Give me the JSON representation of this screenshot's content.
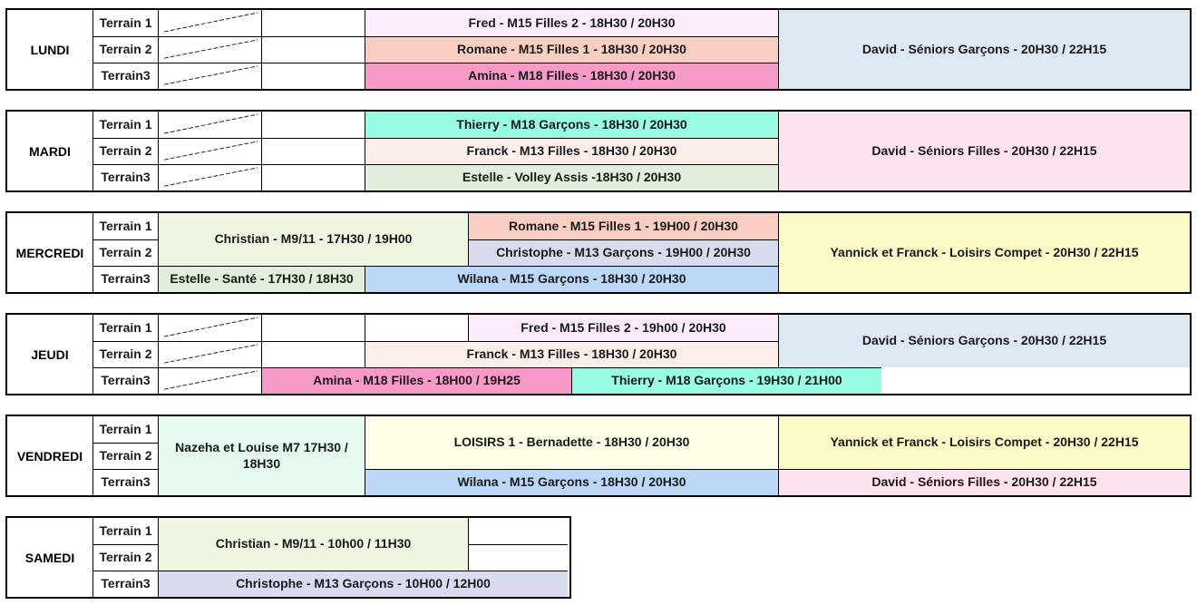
{
  "colors": {
    "pink_light": "#fcecfb",
    "salmon": "#f8cdc2",
    "magenta": "#f79ac9",
    "blue_light": "#dde8f4",
    "cyan": "#98fbe4",
    "peach_light": "#fdeee9",
    "green_light": "#e2eedd",
    "pink_pale": "#fce2ee",
    "green_pale": "#eef6e2",
    "lavender": "#d9dcee",
    "blue": "#bdd8f7",
    "yellow_light": "#fbf9c8",
    "mint": "#e6f9ee",
    "cream": "#fdfce6",
    "white": "#ffffff"
  },
  "days": [
    {
      "name": "LUNDI",
      "terrains": [
        "Terrain 1",
        "Terrain 2",
        "Terrain3"
      ],
      "blocks": [
        {
          "text": "Fred - M15 Filles 2 - 18H30 / 20H30",
          "color": "pink_light"
        },
        {
          "text": "Romane - M15 Filles 1 - 18H30 / 20H30",
          "color": "salmon"
        },
        {
          "text": "Amina - M18 Filles - 18H30 / 20H30",
          "color": "magenta"
        },
        {
          "text": "David -  Séniors Garçons - 20H30 / 22H15",
          "color": "blue_light"
        }
      ]
    },
    {
      "name": "MARDI",
      "terrains": [
        "Terrain 1",
        "Terrain 2",
        "Terrain3"
      ],
      "blocks": [
        {
          "text": "Thierry - M18 Garçons - 18H30 / 20H30",
          "color": "cyan"
        },
        {
          "text": "Franck - M13 Filles - 18H30 / 20H30",
          "color": "peach_light"
        },
        {
          "text": "Estelle - Volley Assis -18H30 / 20H30",
          "color": "green_light"
        },
        {
          "text": "David -  Séniors Filles - 20H30 / 22H15",
          "color": "pink_pale"
        }
      ]
    },
    {
      "name": "MERCREDI",
      "terrains": [
        "Terrain 1",
        "Terrain 2",
        "Terrain3"
      ],
      "blocks": [
        {
          "text": "Christian - M9/11 - 17H30 / 19H00",
          "color": "green_pale"
        },
        {
          "text": "Romane - M15 Filles 1 - 19H00 / 20H30",
          "color": "salmon"
        },
        {
          "text": "Christophe - M13 Garçons - 19H00 / 20H30",
          "color": "lavender"
        },
        {
          "text": "Estelle - Santé - 17H30 / 18H30",
          "color": "green_light"
        },
        {
          "text": "Wilana - M15 Garçons - 18H30 / 20H30",
          "color": "blue"
        },
        {
          "text": "Yannick et Franck - Loisirs Compet - 20H30 / 22H15",
          "color": "yellow_light"
        }
      ]
    },
    {
      "name": "JEUDI",
      "terrains": [
        "Terrain 1",
        "Terrain 2",
        "Terrain3"
      ],
      "blocks": [
        {
          "text": "Fred - M15 Filles 2 - 19h00 / 20H30",
          "color": "pink_light"
        },
        {
          "text": "Franck - M13 Filles - 18H30 / 20H30",
          "color": "peach_light"
        },
        {
          "text": "Amina - M18 Filles - 18H00 / 19H25",
          "color": "magenta"
        },
        {
          "text": "Thierry - M18 Garçons - 19H30 / 21H00",
          "color": "cyan"
        },
        {
          "text": "David -  Séniors Garçons - 20H30 / 22H15",
          "color": "blue_light"
        }
      ]
    },
    {
      "name": "VENDREDI",
      "terrains": [
        "Terrain 1",
        "Terrain 2",
        "Terrain3"
      ],
      "blocks": [
        {
          "text": "Nazeha et Louise  M7 17H30 / 18H30",
          "color": "mint"
        },
        {
          "text": "LOISIRS 1 - Bernadette - 18H30 / 20H30",
          "color": "cream"
        },
        {
          "text": "Yannick et Franck - Loisirs Compet - 20H30 / 22H15",
          "color": "yellow_light"
        },
        {
          "text": "Wilana - M15 Garçons - 18H30 / 20H30",
          "color": "blue"
        },
        {
          "text": "David -  Séniors Filles - 20H30 / 22H15",
          "color": "pink_pale"
        }
      ]
    },
    {
      "name": "SAMEDI",
      "terrains": [
        "Terrain 1",
        "Terrain 2",
        "Terrain3"
      ],
      "blocks": [
        {
          "text": "Christian - M9/11 - 10h00 / 11H30",
          "color": "green_pale"
        },
        {
          "text": "Christophe - M13 Garçons - 10H00 / 12H00",
          "color": "lavender"
        }
      ]
    }
  ]
}
